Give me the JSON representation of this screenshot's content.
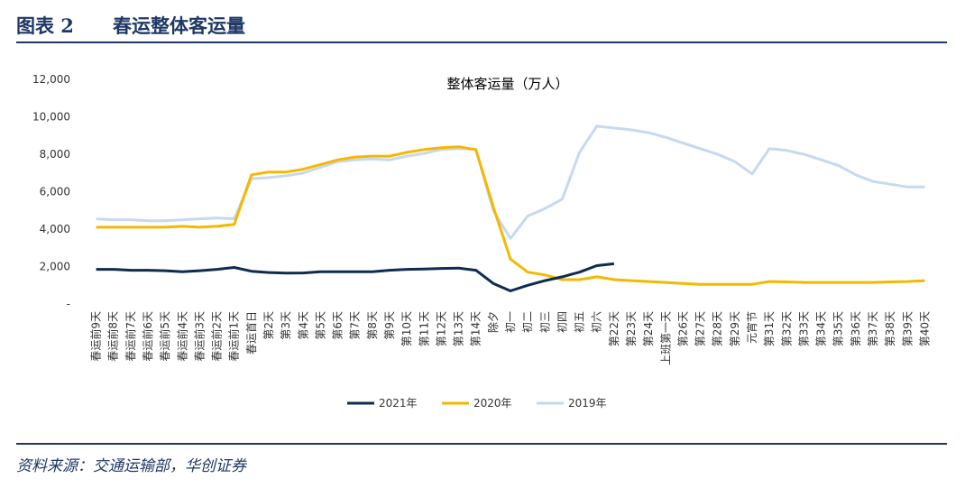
{
  "header": {
    "label": "图表 2",
    "title": "春运整体客运量"
  },
  "source": "资料来源：交通运输部，华创证券",
  "chart_data": {
    "type": "line",
    "title": "整体客运量（万人）",
    "categories": [
      "春运前9天",
      "春运前8天",
      "春运前7天",
      "春运前6天",
      "春运前5天",
      "春运前4天",
      "春运前3天",
      "春运前2天",
      "春运前1天",
      "春运首日",
      "第2天",
      "第3天",
      "第4天",
      "第5天",
      "第6天",
      "第7天",
      "第8天",
      "第9天",
      "第10天",
      "第11天",
      "第12天",
      "第13天",
      "第14天",
      "除夕",
      "初一",
      "初二",
      "初三",
      "初四",
      "初五",
      "初六",
      "第22天",
      "第23天",
      "第24天",
      "上班第一天",
      "第26天",
      "第27天",
      "第28天",
      "第29天",
      "元宵节",
      "第31天",
      "第32天",
      "第33天",
      "第34天",
      "第35天",
      "第36天",
      "第37天",
      "第38天",
      "第39天",
      "第40天"
    ],
    "series": [
      {
        "name": "2021年",
        "color": "#0e2b50",
        "values": [
          1850,
          1850,
          1800,
          1800,
          1780,
          1720,
          1780,
          1850,
          1950,
          1750,
          1680,
          1650,
          1660,
          1720,
          1720,
          1720,
          1720,
          1800,
          1850,
          1870,
          1900,
          1920,
          1800,
          1100,
          700,
          1000,
          1250,
          1450,
          1700,
          2050,
          2150,
          null,
          null,
          null,
          null,
          null,
          null,
          null,
          null,
          null,
          null,
          null,
          null,
          null,
          null,
          null,
          null,
          null,
          null
        ]
      },
      {
        "name": "2020年",
        "color": "#f5b800",
        "values": [
          4100,
          4100,
          4100,
          4100,
          4100,
          4150,
          4100,
          4150,
          4250,
          6900,
          7050,
          7050,
          7200,
          7450,
          7700,
          7850,
          7900,
          7900,
          8100,
          8250,
          8350,
          8400,
          8250,
          5200,
          2400,
          1700,
          1550,
          1300,
          1300,
          1450,
          1300,
          1250,
          1200,
          1150,
          1100,
          1050,
          1050,
          1050,
          1050,
          1200,
          1180,
          1150,
          1150,
          1150,
          1150,
          1150,
          1180,
          1200,
          1250
        ]
      },
      {
        "name": "2019年",
        "color": "#c6d9f0",
        "values": [
          4550,
          4500,
          4500,
          4450,
          4450,
          4500,
          4550,
          4600,
          4550,
          6700,
          6750,
          6850,
          7000,
          7300,
          7600,
          7700,
          7750,
          7700,
          7900,
          8050,
          8250,
          8300,
          8250,
          5000,
          3500,
          4700,
          5100,
          5600,
          8100,
          9500,
          9400,
          9300,
          9150,
          8900,
          8600,
          8300,
          8000,
          7600,
          6950,
          8300,
          8200,
          8000,
          7700,
          7400,
          6900,
          6550,
          6400,
          6250,
          6250
        ]
      }
    ],
    "ylim": [
      0,
      12000
    ],
    "yticks": [
      {
        "value": 0,
        "label": "-"
      },
      {
        "value": 2000,
        "label": "2,000"
      },
      {
        "value": 4000,
        "label": "4,000"
      },
      {
        "value": 6000,
        "label": "6,000"
      },
      {
        "value": 8000,
        "label": "8,000"
      },
      {
        "value": 10000,
        "label": "10,000"
      },
      {
        "value": 12000,
        "label": "12,000"
      }
    ],
    "legend": "bottom"
  }
}
